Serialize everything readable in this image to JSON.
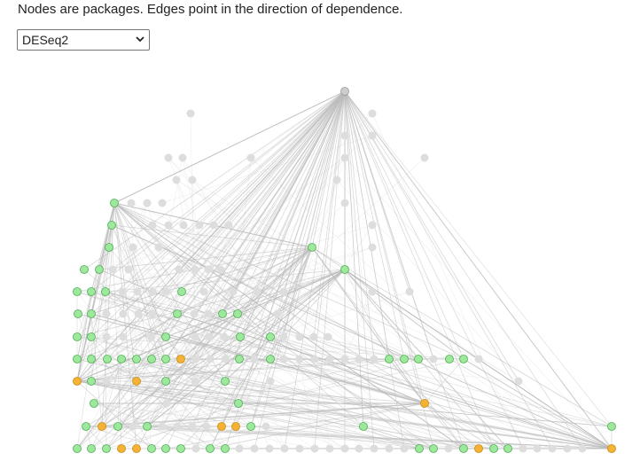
{
  "caption": "Nodes are packages. Edges point in the direction of dependence.",
  "package_select": {
    "selected": "DESeq2"
  },
  "icons": {
    "dropdown": "chevron-down-icon"
  },
  "colors": {
    "background_node": "#dddddd",
    "selected_root": "#cccccc",
    "dependency_node": "#9ee89e",
    "dependency_stroke": "#4caf50",
    "highlight_node": "#f5b335",
    "highlight_stroke": "#c98a10",
    "edge_faint": "#eeeeee",
    "edge_active": "#bbbbbb"
  }
}
